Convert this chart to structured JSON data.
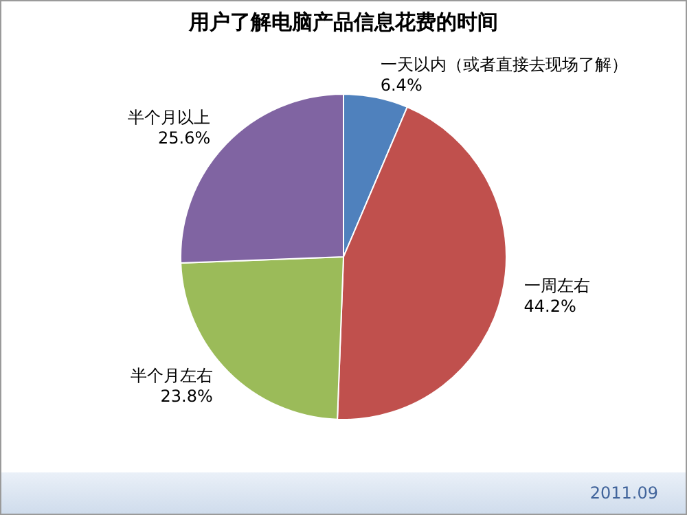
{
  "chart_data": {
    "type": "pie",
    "title": "用户了解电脑产品信息花费的时间",
    "categories": [
      "一天以内（或者直接去现场了解）",
      "一周左右",
      "半个月左右",
      "半个月以上"
    ],
    "values": [
      6.4,
      44.2,
      23.8,
      25.6
    ],
    "colors": [
      "#4f81bd",
      "#c0504d",
      "#9bbb59",
      "#8064a2"
    ],
    "value_labels": [
      "6.4%",
      "44.2%",
      "23.8%",
      "25.6%"
    ],
    "legend": false,
    "annotations": [
      "2011.09"
    ]
  }
}
